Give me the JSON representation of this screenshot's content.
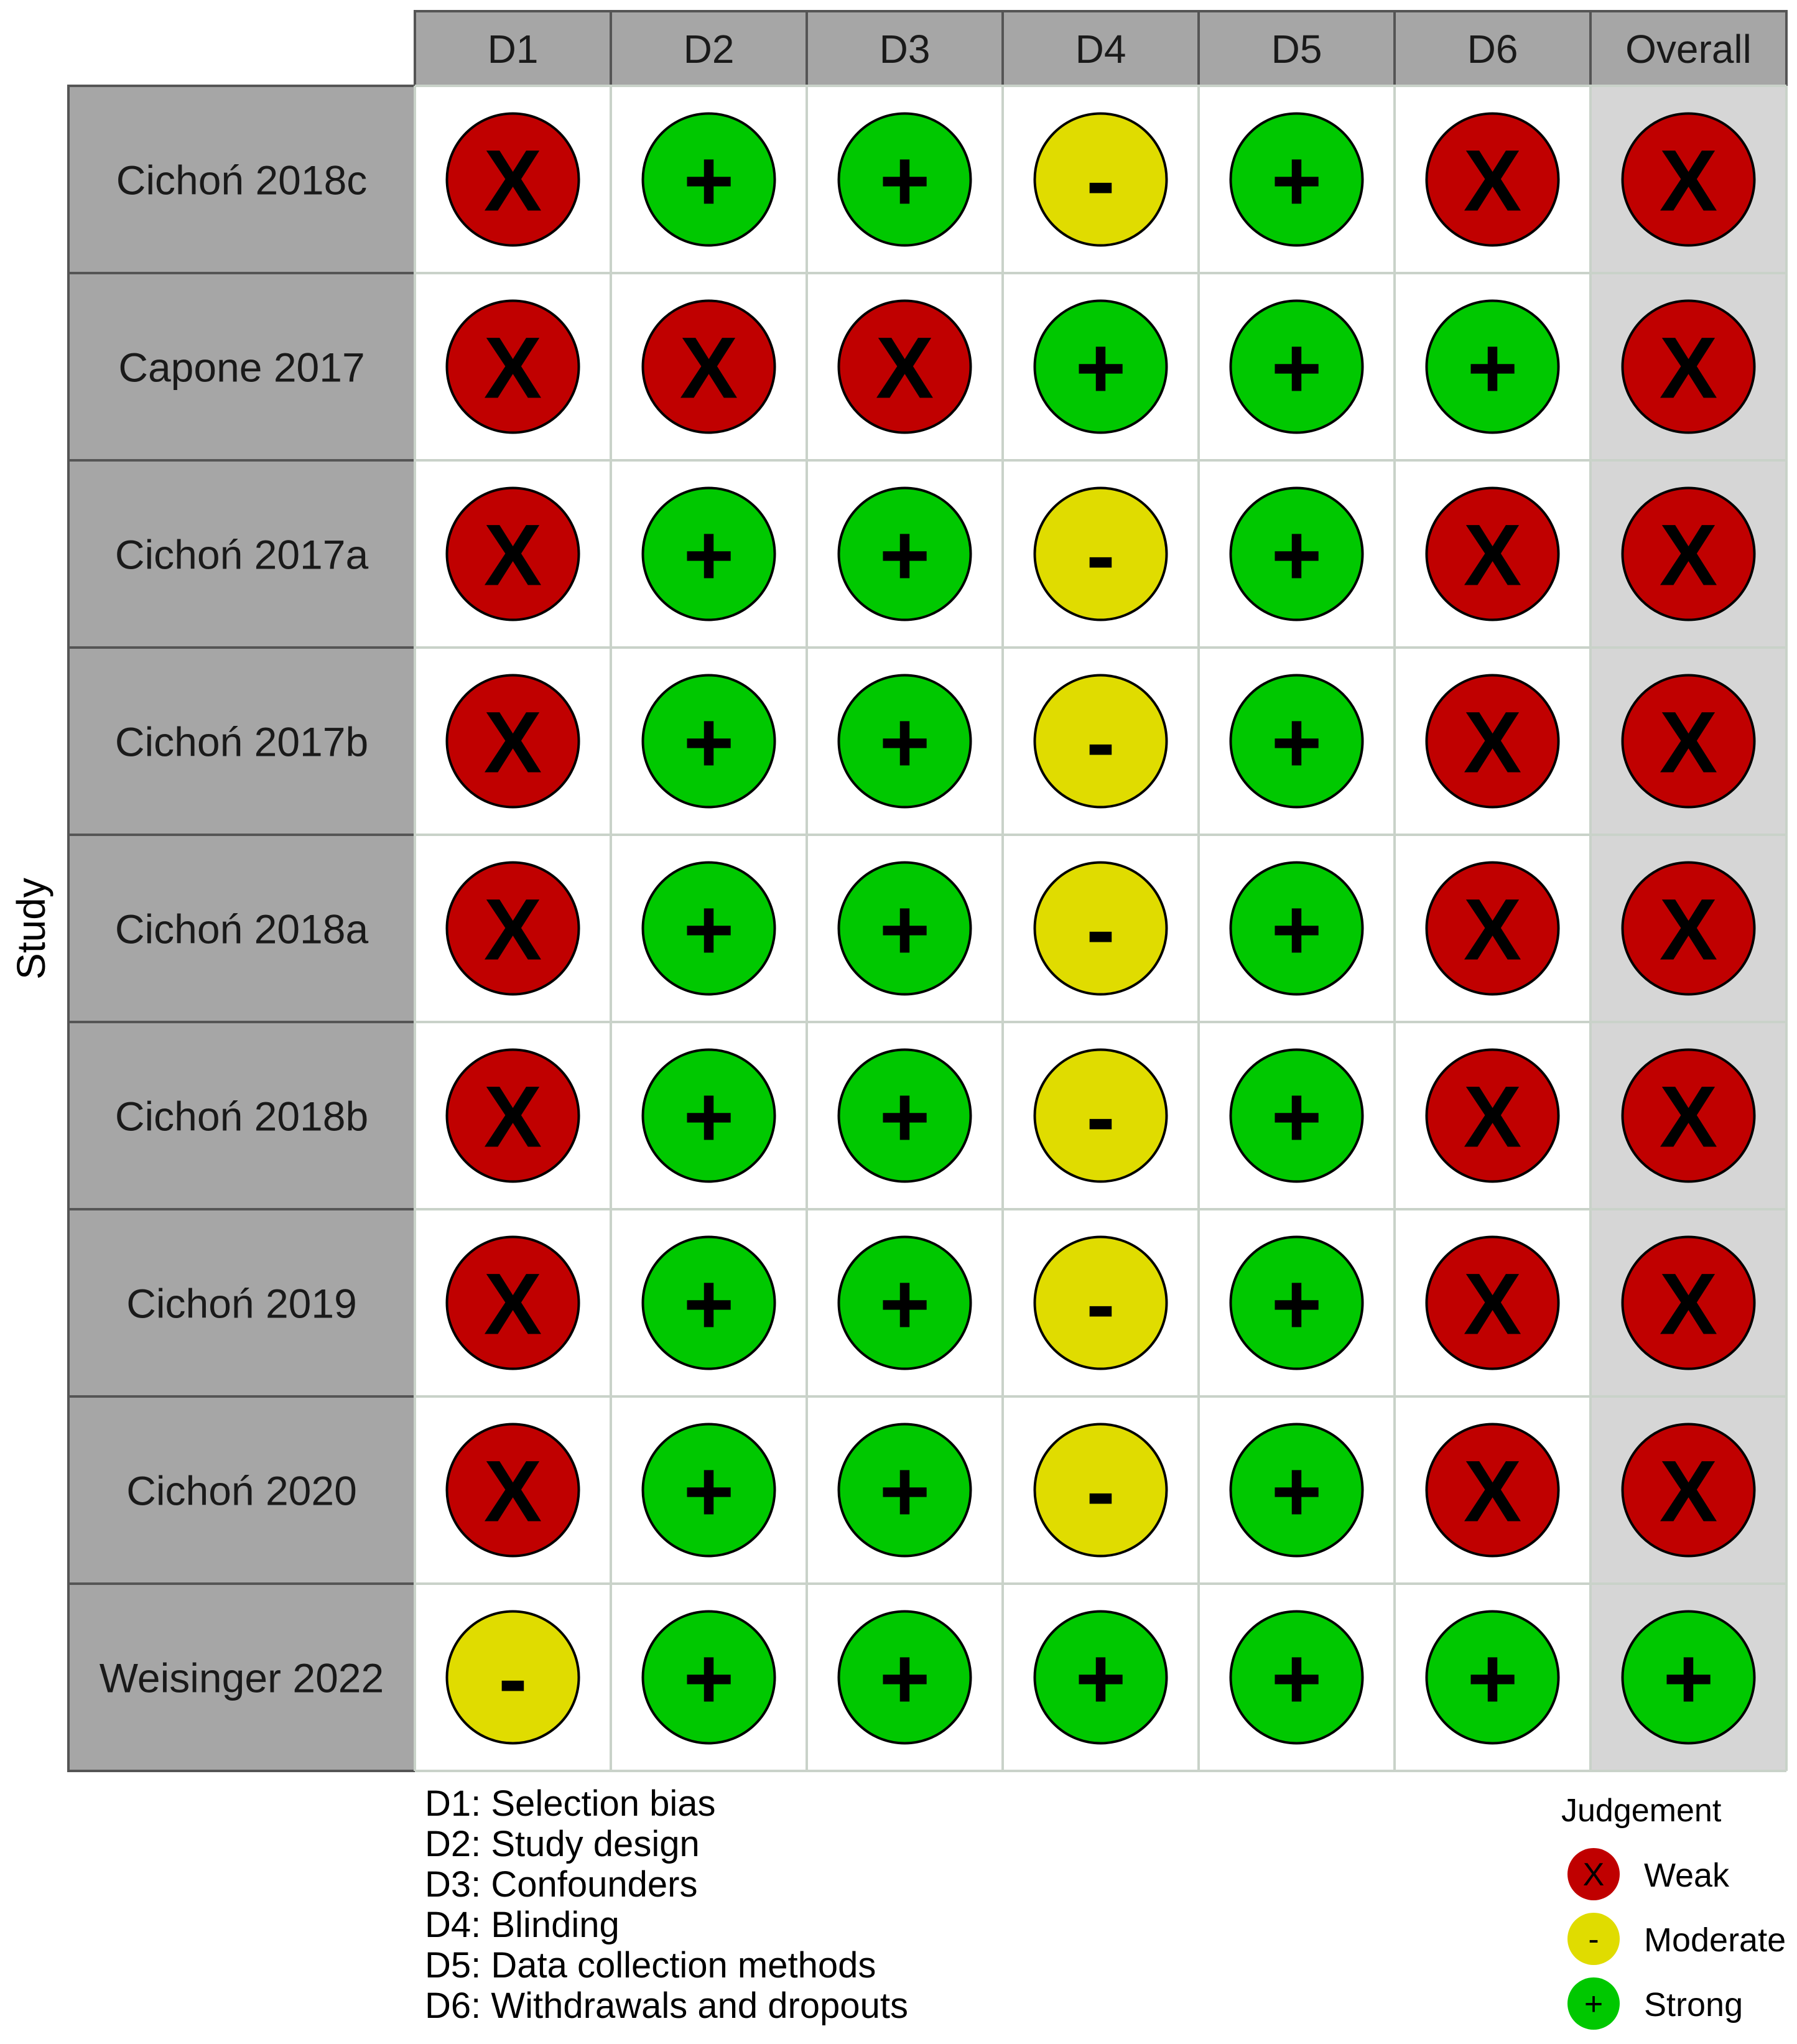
{
  "chart_data": {
    "type": "table",
    "ylabel": "Study",
    "columns": [
      "D1",
      "D2",
      "D3",
      "D4",
      "D5",
      "D6",
      "Overall"
    ],
    "studies": [
      "Cichoń 2018c",
      "Capone 2017",
      "Cichoń 2017a",
      "Cichoń 2017b",
      "Cichoń 2018a",
      "Cichoń 2018b",
      "Cichoń 2019",
      "Cichoń 2020",
      "Weisinger 2022"
    ],
    "judgements": [
      [
        "Weak",
        "Strong",
        "Strong",
        "Moderate",
        "Strong",
        "Weak",
        "Weak"
      ],
      [
        "Weak",
        "Weak",
        "Weak",
        "Strong",
        "Strong",
        "Strong",
        "Weak"
      ],
      [
        "Weak",
        "Strong",
        "Strong",
        "Moderate",
        "Strong",
        "Weak",
        "Weak"
      ],
      [
        "Weak",
        "Strong",
        "Strong",
        "Moderate",
        "Strong",
        "Weak",
        "Weak"
      ],
      [
        "Weak",
        "Strong",
        "Strong",
        "Moderate",
        "Strong",
        "Weak",
        "Weak"
      ],
      [
        "Weak",
        "Strong",
        "Strong",
        "Moderate",
        "Strong",
        "Weak",
        "Weak"
      ],
      [
        "Weak",
        "Strong",
        "Strong",
        "Moderate",
        "Strong",
        "Weak",
        "Weak"
      ],
      [
        "Weak",
        "Strong",
        "Strong",
        "Moderate",
        "Strong",
        "Weak",
        "Weak"
      ],
      [
        "Moderate",
        "Strong",
        "Strong",
        "Strong",
        "Strong",
        "Strong",
        "Strong"
      ]
    ],
    "domain_key": [
      "D1: Selection bias",
      "D2: Study design",
      "D3: Confounders",
      "D4: Blinding",
      "D5: Data collection methods",
      "D6: Withdrawals and dropouts"
    ],
    "legend": {
      "title": "Judgement",
      "placement": "bottom-right",
      "items": [
        {
          "label": "Weak",
          "symbol": "X",
          "color": "#c00000"
        },
        {
          "label": "Moderate",
          "symbol": "-",
          "color": "#e0dc00"
        },
        {
          "label": "Strong",
          "symbol": "+",
          "color": "#00c800"
        }
      ]
    }
  }
}
